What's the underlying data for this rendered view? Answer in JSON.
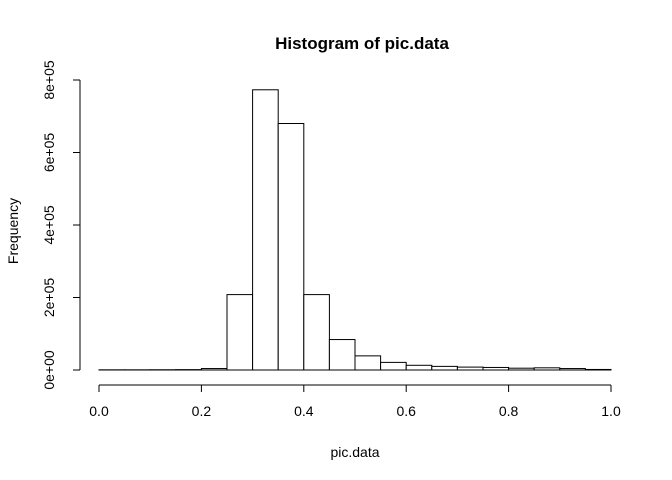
{
  "chart_data": {
    "type": "bar",
    "title": "Histogram of pic.data",
    "xlabel": "pic.data",
    "ylabel": "Frequency",
    "xlim": [
      0,
      1
    ],
    "ylim": [
      0,
      800000
    ],
    "grid": false,
    "legend": "none",
    "bin_width": 0.05,
    "bins": [
      {
        "x0": 0.0,
        "x1": 0.05,
        "count": 500
      },
      {
        "x0": 0.05,
        "x1": 0.1,
        "count": 500
      },
      {
        "x0": 0.1,
        "x1": 0.15,
        "count": 700
      },
      {
        "x0": 0.15,
        "x1": 0.2,
        "count": 1000
      },
      {
        "x0": 0.2,
        "x1": 0.25,
        "count": 4000
      },
      {
        "x0": 0.25,
        "x1": 0.3,
        "count": 208000
      },
      {
        "x0": 0.3,
        "x1": 0.35,
        "count": 773000
      },
      {
        "x0": 0.35,
        "x1": 0.4,
        "count": 680000
      },
      {
        "x0": 0.4,
        "x1": 0.45,
        "count": 208000
      },
      {
        "x0": 0.45,
        "x1": 0.5,
        "count": 84000
      },
      {
        "x0": 0.5,
        "x1": 0.55,
        "count": 39000
      },
      {
        "x0": 0.55,
        "x1": 0.6,
        "count": 21000
      },
      {
        "x0": 0.6,
        "x1": 0.65,
        "count": 13000
      },
      {
        "x0": 0.65,
        "x1": 0.7,
        "count": 10000
      },
      {
        "x0": 0.7,
        "x1": 0.75,
        "count": 8000
      },
      {
        "x0": 0.75,
        "x1": 0.8,
        "count": 7000
      },
      {
        "x0": 0.8,
        "x1": 0.85,
        "count": 5000
      },
      {
        "x0": 0.85,
        "x1": 0.9,
        "count": 6000
      },
      {
        "x0": 0.9,
        "x1": 0.95,
        "count": 4000
      },
      {
        "x0": 0.95,
        "x1": 1.0,
        "count": 1500
      }
    ],
    "x_ticks": [
      {
        "value": 0.0,
        "label": "0.0"
      },
      {
        "value": 0.2,
        "label": "0.2"
      },
      {
        "value": 0.4,
        "label": "0.4"
      },
      {
        "value": 0.6,
        "label": "0.6"
      },
      {
        "value": 0.8,
        "label": "0.8"
      },
      {
        "value": 1.0,
        "label": "1.0"
      }
    ],
    "y_ticks": [
      {
        "value": 0,
        "label": "0e+00"
      },
      {
        "value": 200000,
        "label": "2e+05"
      },
      {
        "value": 400000,
        "label": "4e+05"
      },
      {
        "value": 600000,
        "label": "6e+05"
      },
      {
        "value": 800000,
        "label": "8e+05"
      }
    ],
    "colors": {
      "bar_fill": "#ffffff",
      "bar_stroke": "#000000",
      "background": "#ffffff"
    }
  }
}
